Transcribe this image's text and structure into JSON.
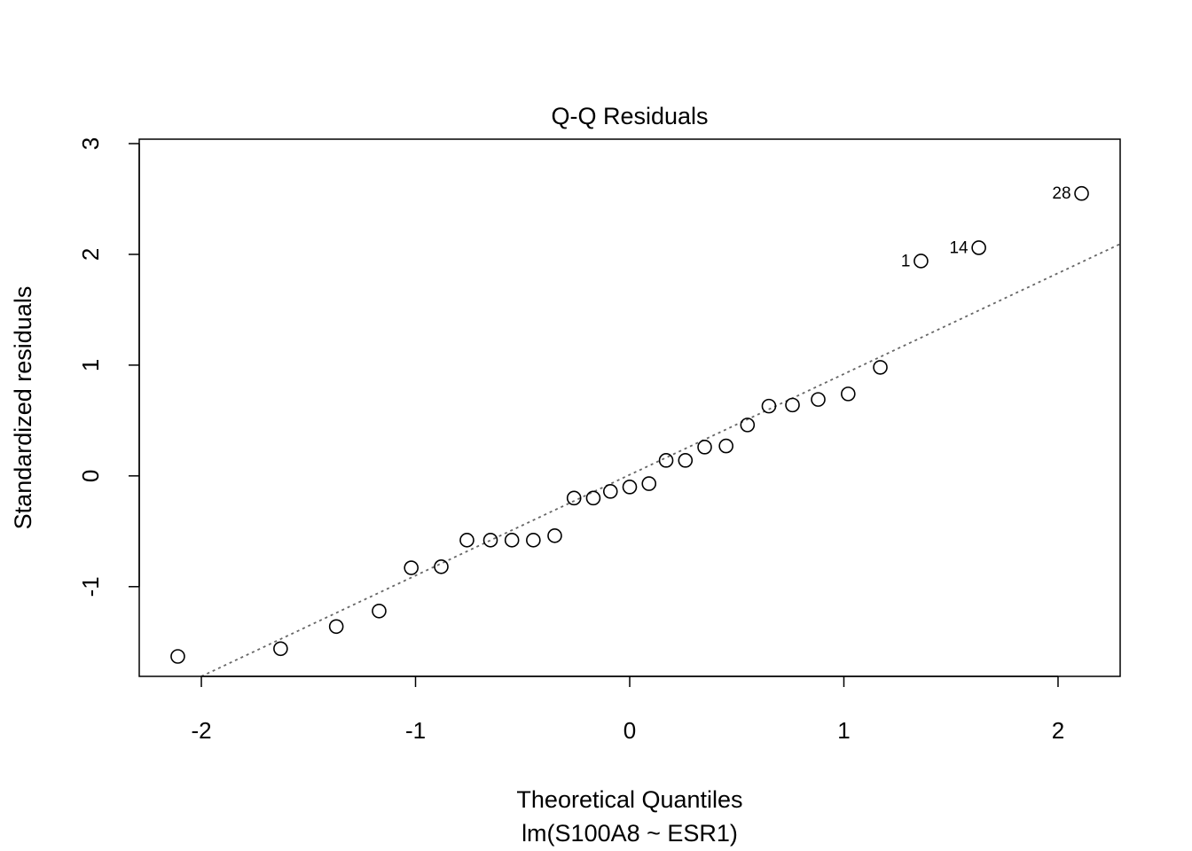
{
  "chart_data": {
    "type": "scatter",
    "title": "Q-Q Residuals",
    "xlabel": "Theoretical Quantiles",
    "subtitle": "lm(S100A8 ~ ESR1)",
    "ylabel": "Standardized residuals",
    "xlim": [
      -2.29,
      2.29
    ],
    "ylim": [
      -1.81,
      3.04
    ],
    "xticks": [
      -2,
      -1,
      0,
      1,
      2
    ],
    "xtick_labels": [
      "-2",
      "-1",
      "0",
      "1",
      "2"
    ],
    "yticks": [
      -1,
      0,
      1,
      2,
      3
    ],
    "ytick_labels": [
      "-1",
      "0",
      "1",
      "2",
      "3"
    ],
    "grid": false,
    "points": [
      {
        "x": -2.11,
        "y": -1.63
      },
      {
        "x": -1.63,
        "y": -1.56
      },
      {
        "x": -1.37,
        "y": -1.36
      },
      {
        "x": -1.17,
        "y": -1.22
      },
      {
        "x": -1.02,
        "y": -0.83
      },
      {
        "x": -0.88,
        "y": -0.82
      },
      {
        "x": -0.76,
        "y": -0.58
      },
      {
        "x": -0.65,
        "y": -0.58
      },
      {
        "x": -0.55,
        "y": -0.58
      },
      {
        "x": -0.45,
        "y": -0.58
      },
      {
        "x": -0.35,
        "y": -0.54
      },
      {
        "x": -0.26,
        "y": -0.2
      },
      {
        "x": -0.17,
        "y": -0.2
      },
      {
        "x": -0.09,
        "y": -0.14
      },
      {
        "x": 0.0,
        "y": -0.1
      },
      {
        "x": 0.09,
        "y": -0.07
      },
      {
        "x": 0.17,
        "y": 0.14
      },
      {
        "x": 0.26,
        "y": 0.14
      },
      {
        "x": 0.35,
        "y": 0.26
      },
      {
        "x": 0.45,
        "y": 0.27
      },
      {
        "x": 0.55,
        "y": 0.46
      },
      {
        "x": 0.65,
        "y": 0.63
      },
      {
        "x": 0.76,
        "y": 0.64
      },
      {
        "x": 0.88,
        "y": 0.69
      },
      {
        "x": 1.02,
        "y": 0.74
      },
      {
        "x": 1.17,
        "y": 0.98
      },
      {
        "x": 1.36,
        "y": 1.94,
        "label": "1"
      },
      {
        "x": 1.63,
        "y": 2.06,
        "label": "14"
      },
      {
        "x": 2.11,
        "y": 2.55,
        "label": "28"
      }
    ],
    "reference_line": {
      "intercept": 0.01,
      "slope": 0.91,
      "style": "dotted",
      "color": "#666666"
    },
    "point_style": "open-circle"
  }
}
